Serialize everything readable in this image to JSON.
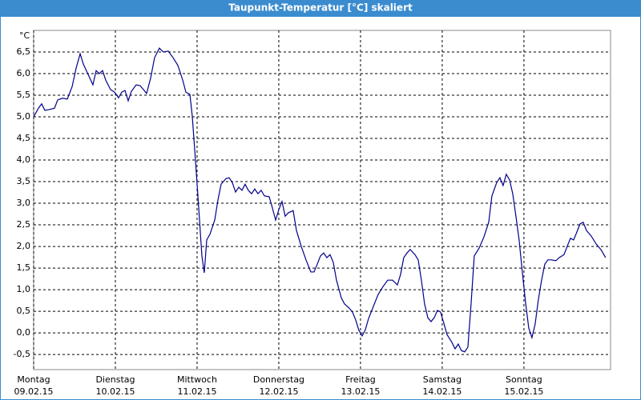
{
  "chart_data": {
    "type": "line",
    "title": "Taupunkt-Temperatur [°C] skaliert",
    "y_unit": "°C",
    "xlim": [
      0,
      7.06
    ],
    "ylim": [
      -0.85,
      7.0
    ],
    "xticks": [
      {
        "value": 0,
        "label": "Montag",
        "date": "09.02.15"
      },
      {
        "value": 1,
        "label": "Dienstag",
        "date": "10.02.15"
      },
      {
        "value": 2,
        "label": "Mittwoch",
        "date": "11.02.15"
      },
      {
        "value": 3,
        "label": "Donnerstag",
        "date": "12.02.15"
      },
      {
        "value": 4,
        "label": "Freitag",
        "date": "13.02.15"
      },
      {
        "value": 5,
        "label": "Samstag",
        "date": "14.02.15"
      },
      {
        "value": 6,
        "label": "Sonntag",
        "date": "15.02.15"
      }
    ],
    "yticks": [
      {
        "value": -0.5,
        "label": "-0,5"
      },
      {
        "value": 0,
        "label": "0,0"
      },
      {
        "value": 0.5,
        "label": "0,5"
      },
      {
        "value": 1,
        "label": "1,0"
      },
      {
        "value": 1.5,
        "label": "1,5"
      },
      {
        "value": 2,
        "label": "2,0"
      },
      {
        "value": 2.5,
        "label": "2,5"
      },
      {
        "value": 3,
        "label": "3,0"
      },
      {
        "value": 3.5,
        "label": "3,5"
      },
      {
        "value": 4,
        "label": "4,0"
      },
      {
        "value": 4.5,
        "label": "4,5"
      },
      {
        "value": 5,
        "label": "5,0"
      },
      {
        "value": 5.5,
        "label": "5,5"
      },
      {
        "value": 6,
        "label": "6,0"
      },
      {
        "value": 6.5,
        "label": "6,5"
      }
    ],
    "grid": true,
    "x": [
      0,
      0.059,
      0.098,
      0.137,
      0.196,
      0.255,
      0.294,
      0.353,
      0.412,
      0.471,
      0.52,
      0.569,
      0.608,
      0.667,
      0.725,
      0.765,
      0.804,
      0.843,
      0.882,
      0.941,
      0.99,
      1.039,
      1.078,
      1.118,
      1.157,
      1.196,
      1.255,
      1.304,
      1.353,
      1.382,
      1.431,
      1.48,
      1.539,
      1.588,
      1.647,
      1.706,
      1.765,
      1.824,
      1.863,
      1.912,
      1.941,
      1.98,
      2.02,
      2.059,
      2.088,
      2.118,
      2.157,
      2.216,
      2.255,
      2.294,
      2.353,
      2.392,
      2.431,
      2.471,
      2.51,
      2.549,
      2.588,
      2.627,
      2.667,
      2.706,
      2.745,
      2.784,
      2.824,
      2.882,
      2.922,
      2.961,
      3.0,
      3.039,
      3.078,
      3.118,
      3.176,
      3.216,
      3.275,
      3.333,
      3.392,
      3.431,
      3.471,
      3.51,
      3.549,
      3.588,
      3.627,
      3.667,
      3.706,
      3.765,
      3.804,
      3.863,
      3.902,
      3.941,
      3.98,
      4.02,
      4.059,
      4.098,
      4.157,
      4.216,
      4.275,
      4.333,
      4.392,
      4.451,
      4.49,
      4.529,
      4.569,
      4.608,
      4.667,
      4.706,
      4.745,
      4.784,
      4.824,
      4.863,
      4.902,
      4.941,
      4.98,
      5.02,
      5.059,
      5.118,
      5.157,
      5.196,
      5.235,
      5.275,
      5.314,
      5.353,
      5.392,
      5.451,
      5.51,
      5.569,
      5.608,
      5.667,
      5.706,
      5.745,
      5.784,
      5.824,
      5.863,
      5.902,
      5.941,
      5.98,
      6.02,
      6.059,
      6.098,
      6.137,
      6.176,
      6.216,
      6.255,
      6.294,
      6.333,
      6.392,
      6.431,
      6.49,
      6.529,
      6.569,
      6.608,
      6.647,
      6.686,
      6.725,
      6.765,
      6.824,
      6.882,
      6.941,
      7.0
    ],
    "series": [
      {
        "color": "#00008b",
        "values": [
          5.0,
          5.2,
          5.3,
          5.15,
          5.17,
          5.2,
          5.39,
          5.43,
          5.41,
          5.7,
          6.13,
          6.46,
          6.22,
          5.98,
          5.74,
          6.07,
          6.0,
          6.07,
          5.85,
          5.63,
          5.57,
          5.44,
          5.57,
          5.61,
          5.37,
          5.59,
          5.74,
          5.72,
          5.61,
          5.54,
          5.89,
          6.37,
          6.59,
          6.5,
          6.52,
          6.37,
          6.19,
          5.85,
          5.57,
          5.52,
          5.02,
          4.0,
          2.89,
          1.78,
          1.39,
          2.15,
          2.28,
          2.61,
          3.07,
          3.44,
          3.57,
          3.59,
          3.48,
          3.26,
          3.37,
          3.3,
          3.44,
          3.3,
          3.22,
          3.33,
          3.22,
          3.3,
          3.17,
          3.15,
          2.89,
          2.61,
          2.85,
          3.04,
          2.7,
          2.78,
          2.83,
          2.37,
          2.0,
          1.69,
          1.41,
          1.41,
          1.59,
          1.78,
          1.85,
          1.74,
          1.81,
          1.63,
          1.22,
          0.81,
          0.67,
          0.57,
          0.48,
          0.3,
          0.06,
          -0.07,
          0.07,
          0.33,
          0.61,
          0.89,
          1.07,
          1.22,
          1.22,
          1.11,
          1.35,
          1.74,
          1.85,
          1.93,
          1.81,
          1.69,
          1.22,
          0.67,
          0.35,
          0.26,
          0.35,
          0.52,
          0.48,
          0.22,
          -0.04,
          -0.22,
          -0.37,
          -0.26,
          -0.41,
          -0.44,
          -0.33,
          0.67,
          1.78,
          1.96,
          2.22,
          2.56,
          3.17,
          3.48,
          3.59,
          3.41,
          3.67,
          3.54,
          3.22,
          2.7,
          2.15,
          1.41,
          0.7,
          0.11,
          -0.11,
          0.2,
          0.76,
          1.22,
          1.59,
          1.69,
          1.69,
          1.67,
          1.74,
          1.81,
          2.0,
          2.19,
          2.15,
          2.33,
          2.52,
          2.56,
          2.37,
          2.24,
          2.06,
          1.93,
          1.74
        ]
      }
    ]
  }
}
